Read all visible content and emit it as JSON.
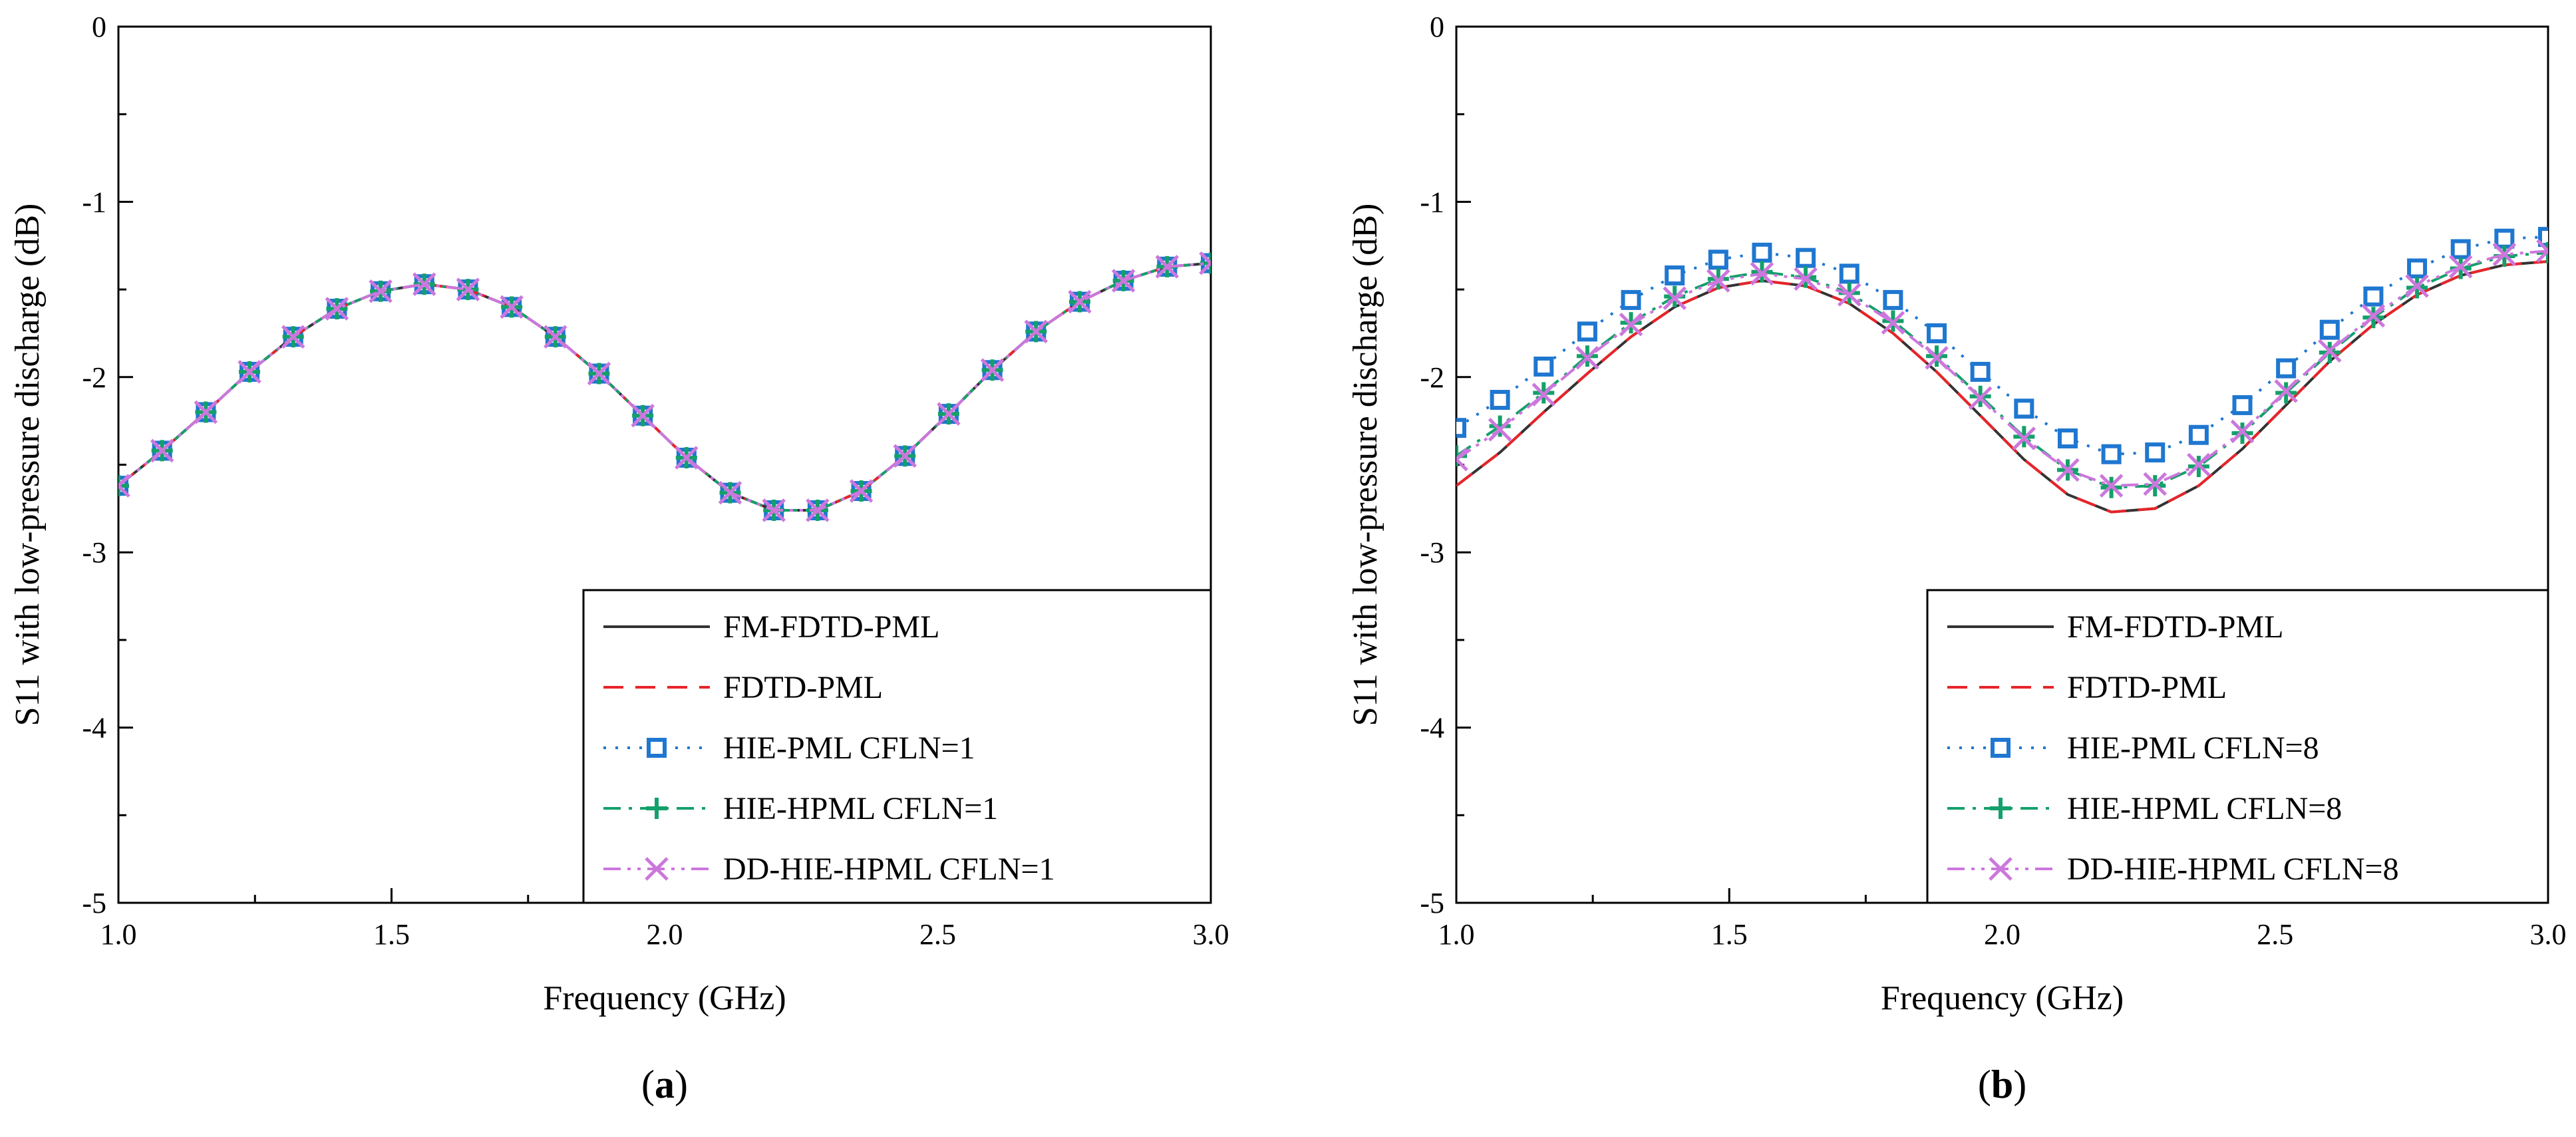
{
  "chart_data": [
    {
      "type": "line",
      "panel_label": "a",
      "xlabel": "Frequency (GHz)",
      "ylabel": "S11 with low-pressure discharge (dB)",
      "xlim": [
        1.0,
        3.0
      ],
      "ylim": [
        -5,
        0
      ],
      "xticks": [
        "1.0",
        "1.5",
        "2.0",
        "2.5",
        "3.0"
      ],
      "yticks": [
        "0",
        "-1",
        "-2",
        "-3",
        "-4",
        "-5"
      ],
      "x": [
        1.0,
        1.08,
        1.16,
        1.24,
        1.32,
        1.4,
        1.48,
        1.56,
        1.64,
        1.72,
        1.8,
        1.88,
        1.96,
        2.04,
        2.12,
        2.2,
        2.28,
        2.36,
        2.44,
        2.52,
        2.6,
        2.68,
        2.76,
        2.84,
        2.92,
        3.0
      ],
      "series": [
        {
          "name": "FM-FDTD-PML",
          "color": "#333333",
          "style": "solid",
          "marker": "none",
          "values": [
            -2.62,
            -2.42,
            -2.2,
            -1.97,
            -1.77,
            -1.61,
            -1.51,
            -1.47,
            -1.5,
            -1.6,
            -1.77,
            -1.98,
            -2.22,
            -2.46,
            -2.66,
            -2.76,
            -2.76,
            -2.65,
            -2.45,
            -2.21,
            -1.96,
            -1.74,
            -1.57,
            -1.45,
            -1.37,
            -1.35
          ]
        },
        {
          "name": "FDTD-PML",
          "color": "#e8242a",
          "style": "dashed",
          "marker": "none",
          "values": [
            -2.62,
            -2.42,
            -2.2,
            -1.97,
            -1.77,
            -1.61,
            -1.51,
            -1.47,
            -1.5,
            -1.6,
            -1.77,
            -1.98,
            -2.22,
            -2.46,
            -2.66,
            -2.76,
            -2.76,
            -2.65,
            -2.45,
            -2.21,
            -1.96,
            -1.74,
            -1.57,
            -1.45,
            -1.37,
            -1.35
          ]
        },
        {
          "name": "HIE-PML CFLN=1",
          "color": "#1f77d0",
          "style": "dotted",
          "marker": "square",
          "values": [
            -2.62,
            -2.42,
            -2.2,
            -1.97,
            -1.77,
            -1.61,
            -1.51,
            -1.47,
            -1.5,
            -1.6,
            -1.77,
            -1.98,
            -2.22,
            -2.46,
            -2.66,
            -2.76,
            -2.76,
            -2.65,
            -2.45,
            -2.21,
            -1.96,
            -1.74,
            -1.57,
            -1.45,
            -1.37,
            -1.35
          ]
        },
        {
          "name": "HIE-HPML CFLN=1",
          "color": "#14a06a",
          "style": "dashdot",
          "marker": "plus",
          "values": [
            -2.62,
            -2.42,
            -2.2,
            -1.97,
            -1.77,
            -1.61,
            -1.51,
            -1.47,
            -1.5,
            -1.6,
            -1.77,
            -1.98,
            -2.22,
            -2.46,
            -2.66,
            -2.76,
            -2.76,
            -2.65,
            -2.45,
            -2.21,
            -1.96,
            -1.74,
            -1.57,
            -1.45,
            -1.37,
            -1.35
          ]
        },
        {
          "name": "DD-HIE-HPML CFLN=1",
          "color": "#cc77dd",
          "style": "dashdotdot",
          "marker": "x",
          "values": [
            -2.62,
            -2.42,
            -2.2,
            -1.97,
            -1.77,
            -1.61,
            -1.51,
            -1.47,
            -1.5,
            -1.6,
            -1.77,
            -1.98,
            -2.22,
            -2.46,
            -2.66,
            -2.76,
            -2.76,
            -2.65,
            -2.45,
            -2.21,
            -1.96,
            -1.74,
            -1.57,
            -1.45,
            -1.37,
            -1.35
          ]
        }
      ],
      "legend_position": "bottom-right",
      "grid": false
    },
    {
      "type": "line",
      "panel_label": "b",
      "xlabel": "Frequency (GHz)",
      "ylabel": "S11 with low-pressure discharge (dB)",
      "xlim": [
        1.0,
        3.0
      ],
      "ylim": [
        -5,
        0
      ],
      "xticks": [
        "1.0",
        "1.5",
        "2.0",
        "2.5",
        "3.0"
      ],
      "yticks": [
        "0",
        "-1",
        "-2",
        "-3",
        "-4",
        "-5"
      ],
      "x": [
        1.0,
        1.08,
        1.16,
        1.24,
        1.32,
        1.4,
        1.48,
        1.56,
        1.64,
        1.72,
        1.8,
        1.88,
        1.96,
        2.04,
        2.12,
        2.2,
        2.28,
        2.36,
        2.44,
        2.52,
        2.6,
        2.68,
        2.76,
        2.84,
        2.92,
        3.0
      ],
      "series": [
        {
          "name": "FM-FDTD-PML",
          "color": "#333333",
          "style": "solid",
          "marker": "none",
          "values": [
            -2.62,
            -2.43,
            -2.2,
            -1.98,
            -1.77,
            -1.6,
            -1.49,
            -1.45,
            -1.48,
            -1.58,
            -1.75,
            -1.97,
            -2.22,
            -2.47,
            -2.67,
            -2.77,
            -2.75,
            -2.62,
            -2.41,
            -2.16,
            -1.91,
            -1.7,
            -1.53,
            -1.42,
            -1.36,
            -1.34
          ]
        },
        {
          "name": "FDTD-PML",
          "color": "#e8242a",
          "style": "dashed",
          "marker": "none",
          "values": [
            -2.62,
            -2.43,
            -2.2,
            -1.98,
            -1.77,
            -1.6,
            -1.49,
            -1.45,
            -1.48,
            -1.58,
            -1.75,
            -1.97,
            -2.22,
            -2.47,
            -2.67,
            -2.77,
            -2.75,
            -2.62,
            -2.41,
            -2.16,
            -1.91,
            -1.7,
            -1.53,
            -1.42,
            -1.36,
            -1.34
          ]
        },
        {
          "name": "HIE-PML CFLN=8",
          "color": "#1f77d0",
          "style": "dotted",
          "marker": "square",
          "values": [
            -2.29,
            -2.13,
            -1.94,
            -1.74,
            -1.56,
            -1.42,
            -1.33,
            -1.29,
            -1.32,
            -1.41,
            -1.56,
            -1.75,
            -1.97,
            -2.18,
            -2.35,
            -2.44,
            -2.43,
            -2.33,
            -2.16,
            -1.95,
            -1.73,
            -1.54,
            -1.38,
            -1.27,
            -1.21,
            -1.2
          ]
        },
        {
          "name": "HIE-HPML CFLN=8",
          "color": "#14a06a",
          "style": "dashdot",
          "marker": "plus",
          "values": [
            -2.45,
            -2.28,
            -2.09,
            -1.88,
            -1.69,
            -1.54,
            -1.44,
            -1.4,
            -1.43,
            -1.52,
            -1.68,
            -1.88,
            -2.11,
            -2.34,
            -2.53,
            -2.63,
            -2.62,
            -2.51,
            -2.32,
            -2.09,
            -1.86,
            -1.66,
            -1.49,
            -1.38,
            -1.31,
            -1.29
          ]
        },
        {
          "name": "DD-HIE-HPML CFLN=8",
          "color": "#cc77dd",
          "style": "dashdotdot",
          "marker": "x",
          "values": [
            -2.47,
            -2.3,
            -2.1,
            -1.89,
            -1.7,
            -1.55,
            -1.45,
            -1.41,
            -1.44,
            -1.53,
            -1.69,
            -1.89,
            -2.12,
            -2.35,
            -2.53,
            -2.62,
            -2.61,
            -2.5,
            -2.31,
            -2.08,
            -1.85,
            -1.65,
            -1.48,
            -1.37,
            -1.3,
            -1.28
          ]
        }
      ],
      "legend_position": "bottom-right",
      "grid": false
    }
  ]
}
